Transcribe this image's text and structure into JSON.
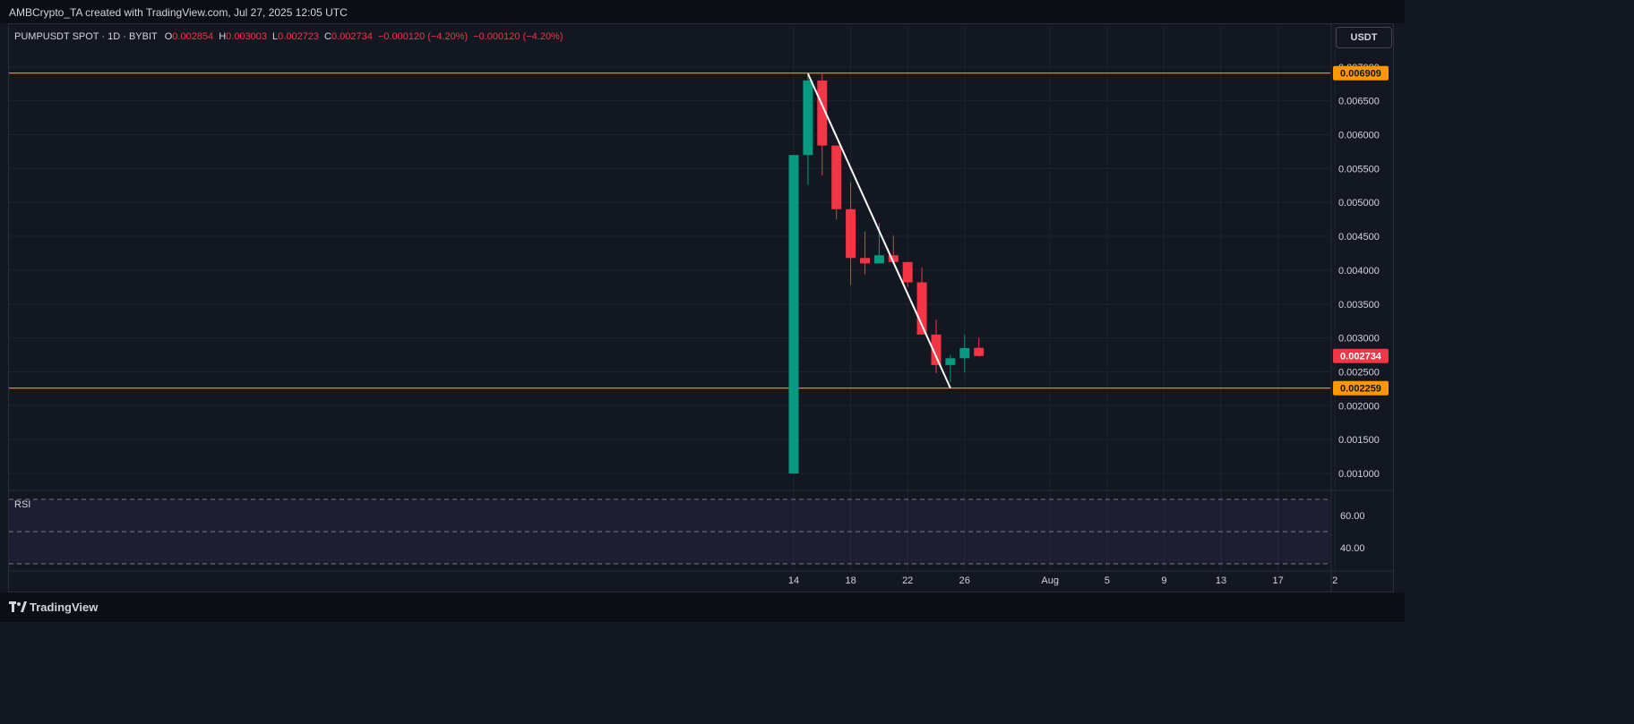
{
  "header": {
    "attribution": "AMBCrypto_TA created with TradingView.com, Jul 27, 2025 12:05 UTC"
  },
  "legend": {
    "symbol": "PUMPUSDT SPOT · 1D · BYBIT",
    "open_label": "O",
    "open": "0.002854",
    "high_label": "H",
    "high": "0.003003",
    "low_label": "L",
    "low": "0.002723",
    "close_label": "C",
    "close": "0.002734",
    "change": "−0.000120 (−4.20%)",
    "change2": "−0.000120 (−4.20%)"
  },
  "currency_button": "USDT",
  "rsi_label": "RSI",
  "footer": {
    "brand": "TradingView"
  },
  "colors": {
    "up": "#089981",
    "down": "#f23645",
    "level": "#ff9800",
    "trend": "#ffffff",
    "background": "#131722"
  },
  "chart_data": {
    "type": "candlestick",
    "price_axis": {
      "ticks": [
        "0.007000",
        "0.006500",
        "0.006000",
        "0.005500",
        "0.005000",
        "0.004500",
        "0.004000",
        "0.003500",
        "0.003000",
        "0.002500",
        "0.002000",
        "0.001500",
        "0.001000"
      ],
      "ylim": [
        0.00075,
        0.00707
      ]
    },
    "time_axis": {
      "ticks": [
        "14",
        "18",
        "22",
        "26",
        "Aug",
        "5",
        "9",
        "13",
        "17",
        "2"
      ]
    },
    "candles": [
      {
        "date": "Jul 14",
        "open": 0.001,
        "high": 0.0057,
        "low": 0.001,
        "close": 0.0057
      },
      {
        "date": "Jul 15",
        "open": 0.0057,
        "high": 0.0069,
        "low": 0.00526,
        "close": 0.0068
      },
      {
        "date": "Jul 16",
        "open": 0.0068,
        "high": 0.0069,
        "low": 0.0054,
        "close": 0.00584
      },
      {
        "date": "Jul 17",
        "open": 0.00584,
        "high": 0.00584,
        "low": 0.00475,
        "close": 0.0049
      },
      {
        "date": "Jul 18",
        "open": 0.0049,
        "high": 0.0053,
        "low": 0.00378,
        "close": 0.00418
      },
      {
        "date": "Jul 19",
        "open": 0.00418,
        "high": 0.00457,
        "low": 0.00394,
        "close": 0.0041
      },
      {
        "date": "Jul 20",
        "open": 0.0041,
        "high": 0.00469,
        "low": 0.0041,
        "close": 0.00422
      },
      {
        "date": "Jul 21",
        "open": 0.00422,
        "high": 0.00451,
        "low": 0.0041,
        "close": 0.00412
      },
      {
        "date": "Jul 22",
        "open": 0.00412,
        "high": 0.00412,
        "low": 0.00375,
        "close": 0.00382
      },
      {
        "date": "Jul 23",
        "open": 0.00382,
        "high": 0.00404,
        "low": 0.00305,
        "close": 0.00305
      },
      {
        "date": "Jul 24",
        "open": 0.00305,
        "high": 0.00327,
        "low": 0.00248,
        "close": 0.0026
      },
      {
        "date": "Jul 25",
        "open": 0.0026,
        "high": 0.00275,
        "low": 0.00234,
        "close": 0.0027
      },
      {
        "date": "Jul 26",
        "open": 0.0027,
        "high": 0.00305,
        "low": 0.00249,
        "close": 0.00285
      },
      {
        "date": "Jul 27",
        "open": 0.002854,
        "high": 0.003003,
        "low": 0.002723,
        "close": 0.002734
      }
    ],
    "levels": [
      {
        "label": "0.006909",
        "value": 0.006909
      },
      {
        "label": "0.002259",
        "value": 0.002259
      }
    ],
    "last_price": {
      "label": "0.002734",
      "value": 0.002734
    },
    "trendline": {
      "from": {
        "date": "Jul 15",
        "value": 0.0069
      },
      "to": {
        "date": "Jul 25",
        "value": 0.00226
      }
    },
    "rsi": {
      "ticks": [
        "60.00",
        "40.00"
      ],
      "band": [
        30,
        70
      ]
    },
    "grid": true
  }
}
